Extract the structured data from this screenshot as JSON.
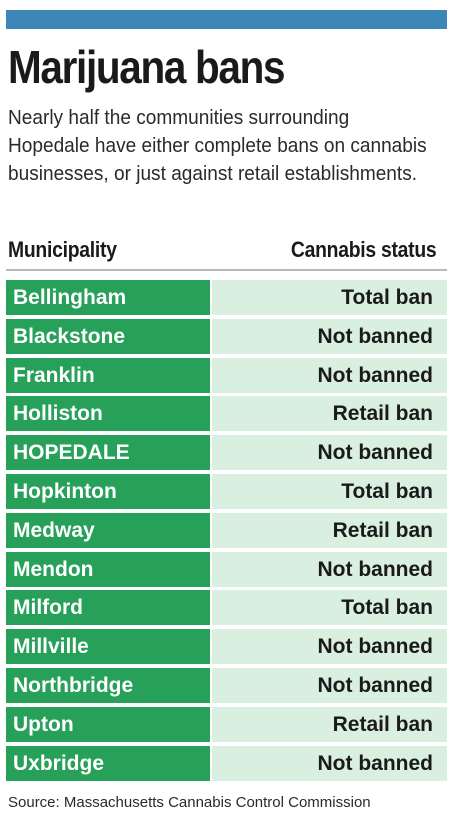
{
  "title": "Marijuana bans",
  "intro": "Nearly half the communities surrounding Hopedale have either complete bans on cannabis businesses, or just against retail establishments.",
  "columns": {
    "municipality": "Municipality",
    "status": "Cannabis status"
  },
  "rows": [
    {
      "name": "Bellingham",
      "status": "Total ban"
    },
    {
      "name": "Blackstone",
      "status": "Not banned"
    },
    {
      "name": "Franklin",
      "status": "Not banned"
    },
    {
      "name": "Holliston",
      "status": "Retail ban"
    },
    {
      "name": "HOPEDALE",
      "status": "Not banned"
    },
    {
      "name": "Hopkinton",
      "status": "Total ban"
    },
    {
      "name": "Medway",
      "status": "Retail ban"
    },
    {
      "name": "Mendon",
      "status": "Not banned"
    },
    {
      "name": "Milford",
      "status": "Total ban"
    },
    {
      "name": "Millville",
      "status": "Not banned"
    },
    {
      "name": "Northbridge",
      "status": "Not banned"
    },
    {
      "name": "Upton",
      "status": "Retail ban"
    },
    {
      "name": "Uxbridge",
      "status": "Not banned"
    }
  ],
  "source": "Source: Massachusetts Cannabis Control Commission",
  "colors": {
    "accent_bar": "#3d86b8",
    "name_cell": "#27a05a",
    "status_cell": "#d9efe0"
  }
}
